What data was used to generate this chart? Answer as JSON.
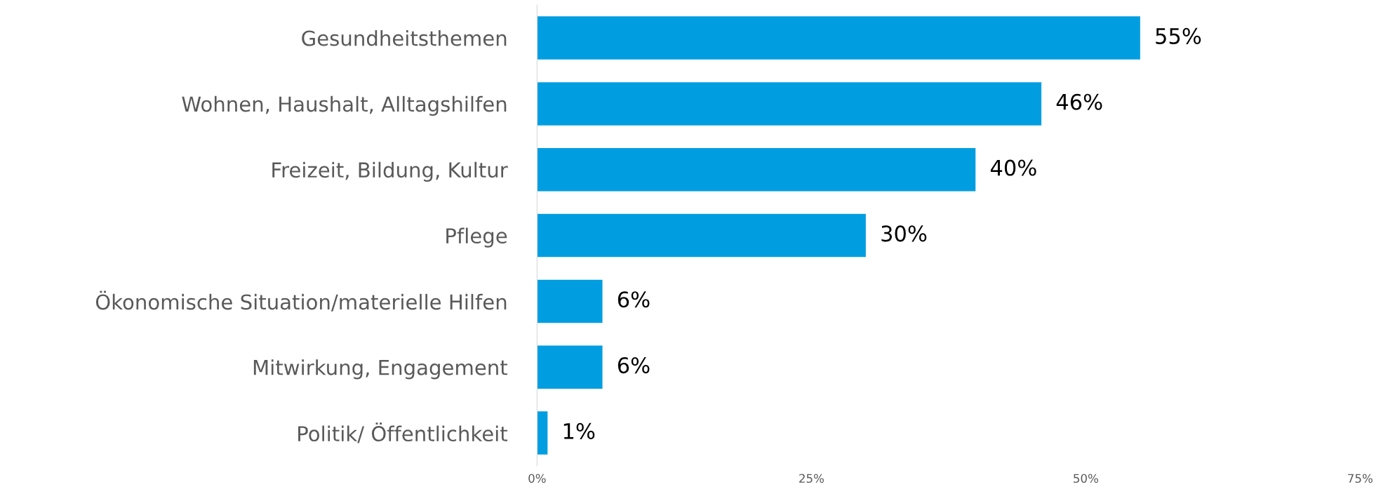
{
  "chart_data": {
    "type": "bar",
    "orientation": "horizontal",
    "categories": [
      "Gesundheitsthemen",
      "Wohnen, Haushalt, Alltagshilfen",
      "Freizeit, Bildung, Kultur",
      "Pflege",
      "Ökonomische Situation/materielle Hilfen",
      "Mitwirkung, Engagement",
      "Politik/ Öffentlichkeit"
    ],
    "values": [
      55,
      46,
      40,
      30,
      6,
      6,
      1
    ],
    "value_labels": [
      "55%",
      "46%",
      "40%",
      "30%",
      "6%",
      "6%",
      "1%"
    ],
    "color": "#009ee0",
    "xlim": [
      0,
      75
    ],
    "xticks": [
      {
        "value": 0,
        "label": "0%"
      },
      {
        "value": 25,
        "label": "25%"
      },
      {
        "value": 50,
        "label": "50%"
      },
      {
        "value": 75,
        "label": "75%"
      }
    ],
    "grid": false,
    "legend": false
  }
}
